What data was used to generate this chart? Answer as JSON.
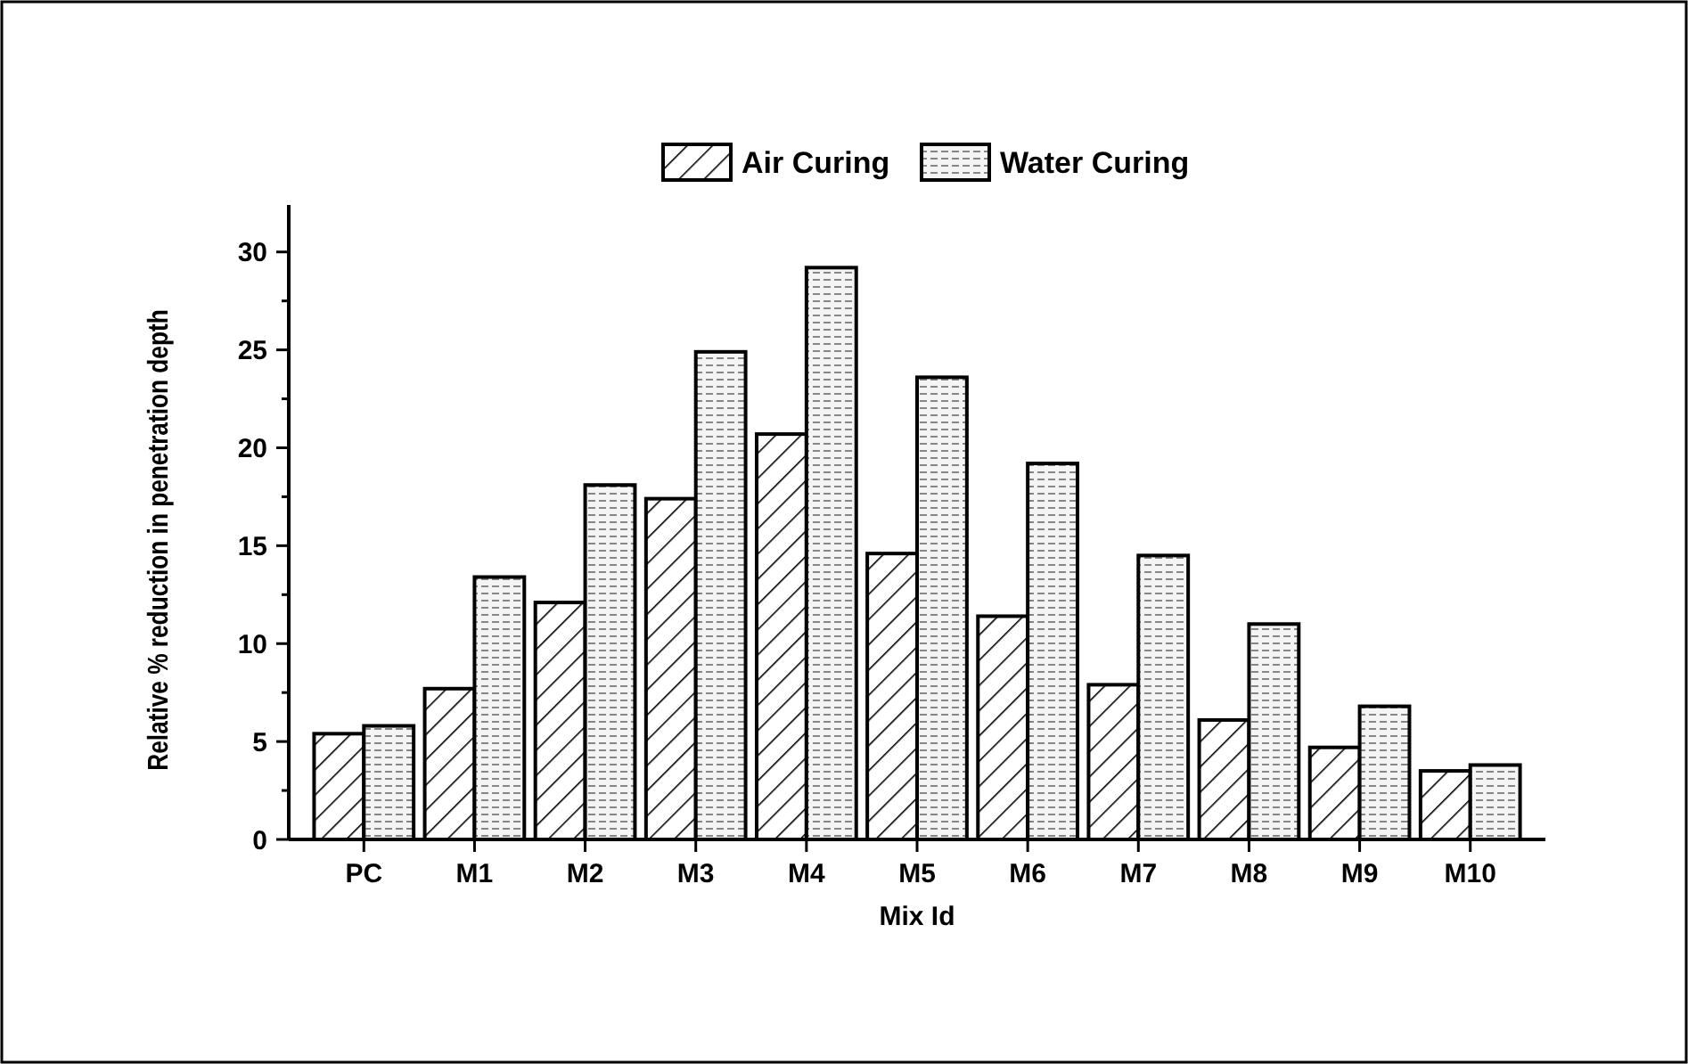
{
  "chart_data": {
    "type": "bar",
    "xlabel": "Mix Id",
    "ylabel": "Relative % reduction in penetration depth",
    "categories": [
      "PC",
      "M1",
      "M2",
      "M3",
      "M4",
      "M5",
      "M6",
      "M7",
      "M8",
      "M9",
      "M10"
    ],
    "series": [
      {
        "name": "Air Curing",
        "color": "#000000",
        "values": [
          5.4,
          7.7,
          12.1,
          17.4,
          20.7,
          14.6,
          11.4,
          7.9,
          6.1,
          4.7,
          3.5
        ]
      },
      {
        "name": "Water Curing",
        "color": "#000000",
        "values": [
          5.8,
          13.4,
          18.1,
          24.9,
          29.2,
          23.6,
          19.2,
          14.5,
          11.0,
          6.8,
          3.8
        ]
      }
    ],
    "ylim": [
      0,
      32.4
    ],
    "yticks": [
      0,
      {
        "value": 2.5,
        "label": null
      },
      5,
      {
        "value": 7.5,
        "label": null
      },
      10,
      {
        "value": 12.5,
        "label": null
      },
      15,
      {
        "value": 17.5,
        "label": null
      },
      20,
      {
        "value": 22.5,
        "label": null
      },
      25,
      {
        "value": 27.5,
        "label": null
      },
      30
    ],
    "grid": false,
    "legend": "top right"
  }
}
